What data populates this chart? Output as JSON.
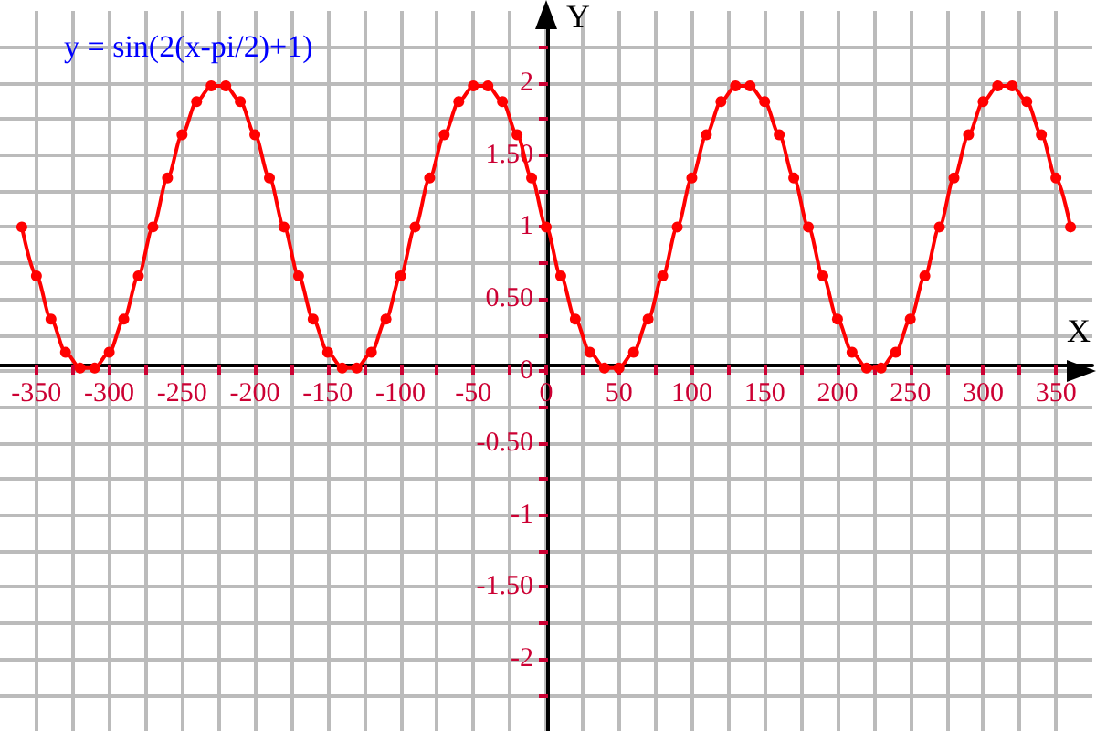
{
  "chart_data": {
    "type": "line",
    "title": "y = sin(2(x-pi/2)+1)",
    "xlabel": "X",
    "ylabel": "Y",
    "x": [
      -360,
      -350,
      -340,
      -330,
      -320,
      -310,
      -300,
      -290,
      -280,
      -270,
      -260,
      -250,
      -240,
      -230,
      -220,
      -210,
      -200,
      -190,
      -180,
      -170,
      -160,
      -150,
      -140,
      -130,
      -120,
      -110,
      -100,
      -90,
      -80,
      -70,
      -60,
      -50,
      -40,
      -30,
      -20,
      -10,
      0,
      10,
      20,
      30,
      40,
      50,
      60,
      70,
      80,
      90,
      100,
      110,
      120,
      130,
      140,
      150,
      160,
      170,
      180,
      190,
      200,
      210,
      220,
      230,
      240,
      250,
      260,
      270,
      280,
      290,
      300,
      310,
      320,
      330,
      340,
      350,
      360
    ],
    "series": [
      {
        "color": "#ff0000",
        "values": [
          1,
          0.66,
          0.36,
          0.13,
          0.02,
          0.02,
          0.13,
          0.36,
          0.66,
          1,
          1.34,
          1.64,
          1.87,
          1.98,
          1.98,
          1.87,
          1.64,
          1.34,
          1,
          0.66,
          0.36,
          0.13,
          0.02,
          0.02,
          0.13,
          0.36,
          0.66,
          1,
          1.34,
          1.64,
          1.87,
          1.98,
          1.98,
          1.87,
          1.64,
          1.34,
          1,
          0.66,
          0.36,
          0.13,
          0.02,
          0.02,
          0.13,
          0.36,
          0.66,
          1,
          1.34,
          1.64,
          1.87,
          1.98,
          1.98,
          1.87,
          1.64,
          1.34,
          1,
          0.66,
          0.36,
          0.13,
          0.02,
          0.02,
          0.13,
          0.36,
          0.66,
          1,
          1.34,
          1.64,
          1.87,
          1.98,
          1.98,
          1.87,
          1.64,
          1.34,
          1
        ]
      }
    ],
    "xlim": [
      -375,
      375
    ],
    "xticks": [
      -350,
      {
        "value": -325,
        "label": null
      },
      -300,
      {
        "value": -275,
        "label": null
      },
      -250,
      {
        "value": -225,
        "label": null
      },
      -200,
      {
        "value": -175,
        "label": null
      },
      -150,
      {
        "value": -125,
        "label": null
      },
      -100,
      {
        "value": -75,
        "label": null
      },
      -50,
      {
        "value": -25,
        "label": null
      },
      0,
      {
        "value": 25,
        "label": null
      },
      50,
      {
        "value": 75,
        "label": null
      },
      100,
      {
        "value": 125,
        "label": null
      },
      150,
      {
        "value": 175,
        "label": null
      },
      200,
      {
        "value": 225,
        "label": null
      },
      250,
      {
        "value": 275,
        "label": null
      },
      300,
      {
        "value": 325,
        "label": null
      },
      350
    ],
    "ylim": [
      -2.5,
      2.5
    ],
    "yticks": [
      {
        "value": -2.25,
        "label": null
      },
      -2,
      {
        "value": -1.75,
        "label": null
      },
      {
        "value": -1.5,
        "label": "-1.50"
      },
      {
        "value": -1.25,
        "label": null
      },
      -1,
      {
        "value": -0.75,
        "label": null
      },
      {
        "value": -0.5,
        "label": "-0.50"
      },
      {
        "value": -0.25,
        "label": null
      },
      0,
      {
        "value": 0.25,
        "label": null
      },
      {
        "value": 0.5,
        "label": "0.50"
      },
      {
        "value": 0.75,
        "label": null
      },
      1,
      {
        "value": 1.25,
        "label": null
      },
      {
        "value": 1.5,
        "label": "1.50"
      },
      {
        "value": 1.75,
        "label": null
      },
      2,
      {
        "value": 2.25,
        "label": null
      }
    ],
    "grid": true,
    "marker": "circle",
    "line_style": "solid"
  }
}
